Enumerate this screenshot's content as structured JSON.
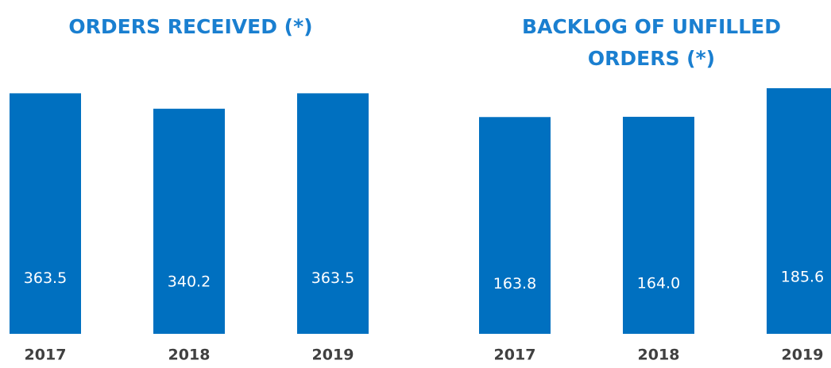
{
  "chart_data": [
    {
      "type": "bar",
      "title": "ORDERS RECEIVED (*)",
      "categories": [
        "2017",
        "2018",
        "2019"
      ],
      "values": [
        363.5,
        340.2,
        363.5
      ],
      "color": "#0070c0",
      "ylim": [
        0,
        400
      ]
    },
    {
      "type": "bar",
      "title": "BACKLOG OF UNFILLED ORDERS (*)",
      "categories": [
        "2017",
        "2018",
        "2019"
      ],
      "values": [
        163.8,
        164.0,
        185.6
      ],
      "value_labels": [
        "163.8",
        "164.0",
        "185.6"
      ],
      "color": "#0070c0",
      "ylim": [
        0,
        200
      ]
    }
  ]
}
